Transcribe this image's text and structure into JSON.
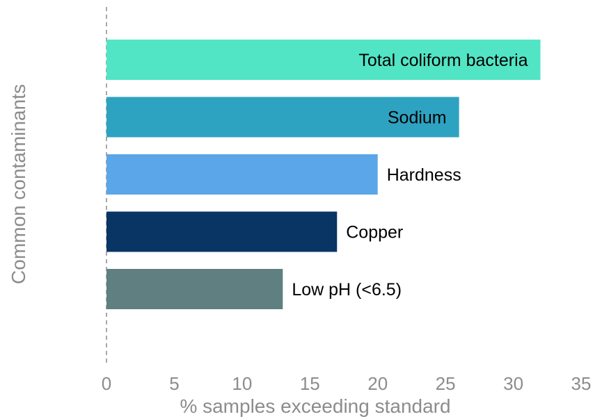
{
  "chart_data": {
    "type": "bar",
    "orientation": "horizontal",
    "title": "",
    "xlabel": "% samples exceeding standard",
    "ylabel": "Common contaminants",
    "xlim": [
      0,
      35
    ],
    "xticks": [
      "0",
      "5",
      "10",
      "15",
      "20",
      "25",
      "30",
      "35"
    ],
    "grid": false,
    "categories": [
      "Total coliform bacteria",
      "Sodium",
      "Hardness",
      "Copper",
      "Low pH (<6.5)"
    ],
    "values": [
      32,
      26,
      20,
      17,
      13
    ],
    "colors": [
      "#52e5c5",
      "#2ea3c1",
      "#5ba6e8",
      "#083563",
      "#5f7f80"
    ],
    "label_position": [
      "inside",
      "inside",
      "outside",
      "outside",
      "outside"
    ]
  }
}
